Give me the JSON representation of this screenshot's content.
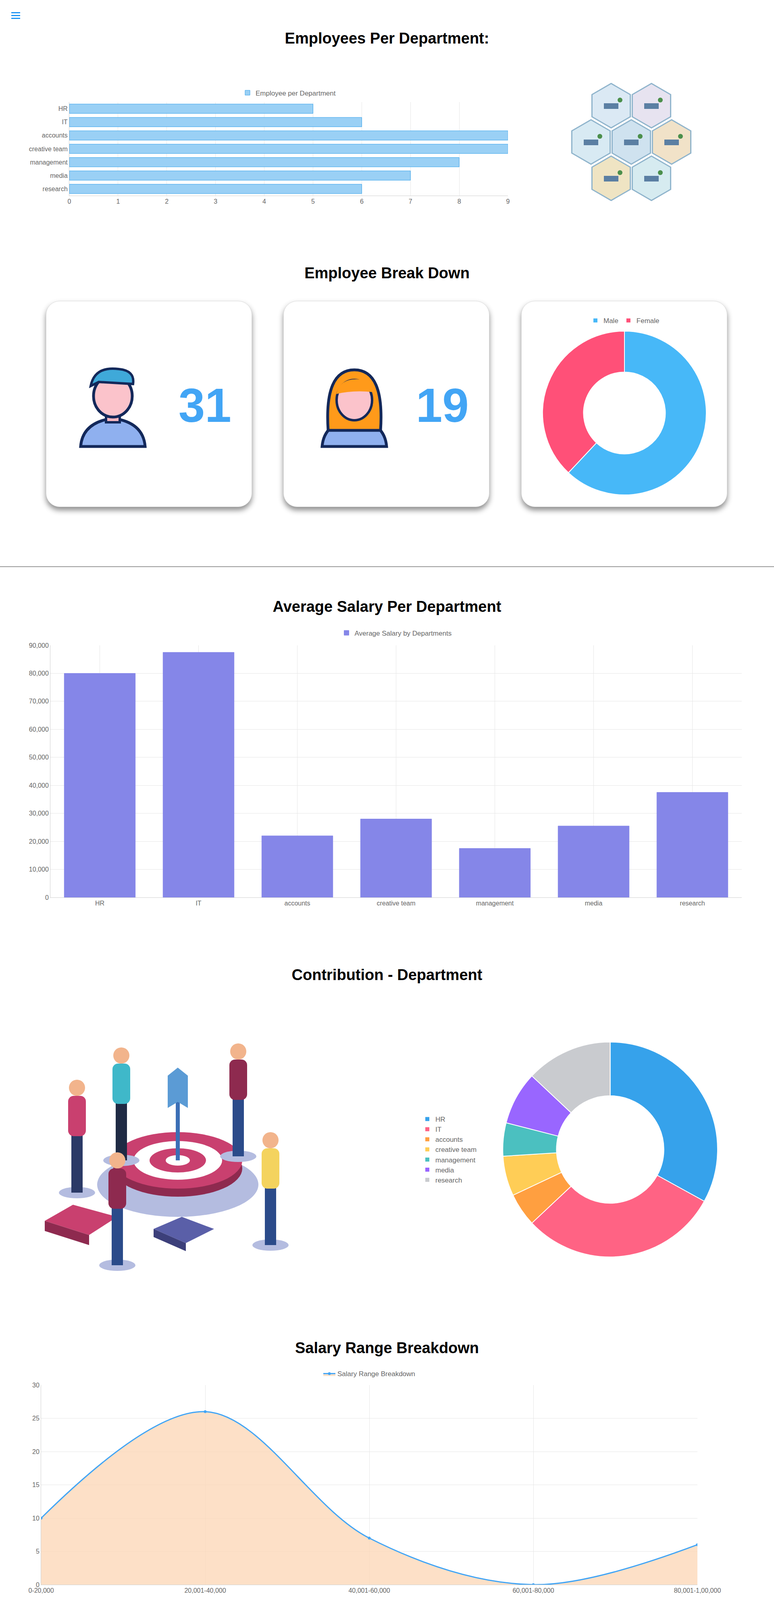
{
  "chart_data": [
    {
      "type": "bar",
      "title": "Employees Per Department:",
      "orientation": "horizontal",
      "categories": [
        "HR",
        "IT",
        "accounts",
        "creative team",
        "management",
        "media",
        "research"
      ],
      "series": [
        {
          "name": "Employee per Department",
          "color": "#9ad0f5",
          "values": [
            5,
            6,
            9,
            9,
            8,
            7,
            6
          ]
        }
      ],
      "xlim": [
        0,
        9
      ],
      "xticks": [
        0,
        1,
        2,
        3,
        4,
        5,
        6,
        7,
        8,
        9
      ],
      "grid": true,
      "legend": "top"
    },
    {
      "type": "pie",
      "title": "Employee Break Down",
      "categories": [
        "Male",
        "Female"
      ],
      "values": [
        31,
        19
      ],
      "colors": [
        "#47b8f8",
        "#ff5078"
      ],
      "legend": "top"
    },
    {
      "type": "bar",
      "title": "Average Salary Per Department",
      "categories": [
        "HR",
        "IT",
        "accounts",
        "creative team",
        "management",
        "media",
        "research"
      ],
      "series": [
        {
          "name": "Average Salary by Departments",
          "color": "#8586e8",
          "values": [
            80000,
            87500,
            22000,
            28000,
            17500,
            25500,
            37500
          ]
        }
      ],
      "ylim": [
        0,
        90000
      ],
      "yticks": [
        0,
        {
          "value": 10000,
          "label": "10,000"
        },
        {
          "value": 20000,
          "label": "20,000"
        },
        {
          "value": 30000,
          "label": "30,000"
        },
        {
          "value": 40000,
          "label": "40,000"
        },
        {
          "value": 50000,
          "label": "50,000"
        },
        {
          "value": 60000,
          "label": "60,000"
        },
        {
          "value": 70000,
          "label": "70,000"
        },
        {
          "value": 80000,
          "label": "80,000"
        },
        {
          "value": 90000,
          "label": "90,000"
        }
      ],
      "grid": true,
      "legend": "top"
    },
    {
      "type": "pie",
      "title": "Contribution - Department",
      "categories": [
        "HR",
        "IT",
        "accounts",
        "creative team",
        "management",
        "media",
        "research"
      ],
      "values": [
        33,
        30,
        5,
        6,
        5,
        8,
        13
      ],
      "colors": [
        "#36a2eb",
        "#ff6384",
        "#ff9f40",
        "#ffcd56",
        "#4bc0c0",
        "#9966ff",
        "#c9cbcf"
      ],
      "legend": "left"
    },
    {
      "type": "line",
      "title": "Salary Range Breakdown",
      "categories": [
        "0-20,000",
        "20,001-40,000",
        "40,001-60,000",
        "60,001-80,000",
        "80,001-1,00,000"
      ],
      "series": [
        {
          "name": "Salary Range Breakdown",
          "color": "#42a5f5",
          "values": [
            10,
            26,
            7,
            0,
            6
          ]
        }
      ],
      "ylim": [
        0,
        30
      ],
      "yticks": [
        0,
        5,
        10,
        15,
        20,
        25,
        30
      ],
      "grid": true,
      "legend": "top",
      "line_style": "smooth",
      "marker": "circle"
    }
  ]
}
